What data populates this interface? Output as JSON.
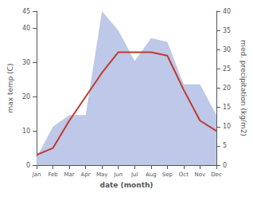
{
  "chart_data": {
    "type": "line",
    "categories": [
      "Jan",
      "Feb",
      "Mar",
      "Apr",
      "May",
      "Jun",
      "Jul",
      "Aug",
      "Sep",
      "Oct",
      "Nov",
      "Dec"
    ],
    "series": [
      {
        "type": "area",
        "axis": "y2",
        "color": "#bec8e8",
        "values": [
          2,
          10,
          13,
          13,
          40,
          35,
          27,
          33,
          32,
          21,
          21,
          13
        ]
      },
      {
        "type": "line",
        "axis": "y",
        "color": "#c0392b",
        "values": [
          3,
          5,
          13,
          20,
          27,
          33,
          33,
          33,
          32,
          22,
          13,
          10
        ]
      }
    ],
    "xlabel": "date (month)",
    "ylabel": "max temp (C)",
    "y2label": "med. precipitation (kg/m2)",
    "ylim": [
      0,
      45
    ],
    "yticks": [
      0,
      10,
      20,
      30,
      40
    ],
    "y2lim": [
      0,
      40
    ],
    "y2ticks": [
      0,
      5,
      10,
      15,
      20,
      25,
      30,
      35,
      40
    ],
    "grid": false
  }
}
